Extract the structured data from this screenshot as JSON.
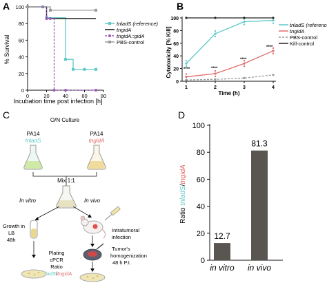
{
  "panels": {
    "A": {
      "letter": "A",
      "ylabel": "% Survival",
      "xlabel": "Incubation time post infection [h]",
      "yticks": [
        "0",
        "20",
        "40",
        "60",
        "80",
        "100"
      ],
      "xticks": [
        "0",
        "20",
        "40",
        "60",
        "80"
      ],
      "legend": [
        "tnladS (reference)",
        "tngidA",
        "tngidA::gidA",
        "PBS-control"
      ]
    },
    "B": {
      "letter": "B",
      "ylabel": "Cytotoxicity [% Kill]",
      "xlabel": "Time (h)",
      "yticks": [
        "0",
        "20",
        "40",
        "60",
        "80",
        "100"
      ],
      "xticks": [
        "1",
        "2",
        "3",
        "4"
      ],
      "legend": [
        "tnladS (reference)",
        "tngidA",
        "PBS-control",
        "Kill-control"
      ],
      "stars": [
        "****",
        "****",
        "****",
        "****"
      ]
    },
    "C": {
      "letter": "C",
      "on_culture": "O/N Culture",
      "pa14_a": "PA14",
      "pa14_b": "PA14",
      "strain_a": "tnladS",
      "strain_b": "tngidA",
      "mix": "Mix 1:1",
      "in_vitro": "In vitro",
      "in_vivo": "In vivo",
      "growth": "Growth in",
      "lb": "LB",
      "h48": "48h",
      "intratumoral": "Intratumoral",
      "infection": "infection",
      "tumor": "Tumor's",
      "homog": "homogenization",
      "hpi": "48 h P.I.",
      "plating": "Plating",
      "cpcr": "cPCR",
      "ratio": "Ratio",
      "ratio_a": "tnladS",
      "slash": "/",
      "ratio_b": "tngidA"
    },
    "D": {
      "letter": "D",
      "ylabel_pre": "Ratio ",
      "ylabel_a": "tnladS",
      "ylabel_slash": "/",
      "ylabel_b": "tngidA",
      "yticks": [
        "0",
        "20",
        "40",
        "60",
        "80",
        "100"
      ]
    }
  },
  "colors": {
    "reference": "#5ec8c8",
    "gidA": "#e06a6a",
    "complement": "#9b59b6",
    "pbs": "#9a9a9a",
    "kill": "#222222",
    "bar": "#595550"
  },
  "chart_data": [
    {
      "type": "line",
      "panel": "A",
      "xlabel": "Incubation time post infection [h]",
      "ylabel": "% Survival",
      "xlim": [
        0,
        80
      ],
      "ylim": [
        0,
        100
      ],
      "series": [
        {
          "name": "tnladS (reference)",
          "x": [
            0,
            16,
            20,
            40,
            48,
            60,
            72
          ],
          "y": [
            100,
            100,
            87,
            37,
            25,
            25,
            25
          ]
        },
        {
          "name": "tngidA",
          "x": [
            0,
            16,
            20,
            24,
            72
          ],
          "y": [
            100,
            100,
            86,
            86,
            86
          ]
        },
        {
          "name": "tngidA::gidA",
          "x": [
            0,
            16,
            20,
            24,
            28,
            40,
            72
          ],
          "y": [
            100,
            100,
            86,
            86,
            0,
            0,
            0
          ]
        },
        {
          "name": "PBS-control",
          "x": [
            0,
            24,
            72
          ],
          "y": [
            100,
            96,
            96
          ]
        }
      ]
    },
    {
      "type": "line",
      "panel": "B",
      "xlabel": "Time (h)",
      "ylabel": "Cytotoxicity [% Kill]",
      "xlim": [
        1,
        4
      ],
      "ylim": [
        0,
        100
      ],
      "series": [
        {
          "name": "tnladS (reference)",
          "x": [
            1,
            2,
            3,
            4
          ],
          "y": [
            28,
            75,
            94,
            96
          ]
        },
        {
          "name": "tngidA",
          "x": [
            1,
            2,
            3,
            4
          ],
          "y": [
            7,
            12,
            28,
            48
          ]
        },
        {
          "name": "PBS-control",
          "x": [
            1,
            2,
            3,
            4
          ],
          "y": [
            2,
            3,
            5,
            10
          ]
        },
        {
          "name": "Kill-control",
          "x": [
            1,
            2,
            3,
            4
          ],
          "y": [
            100,
            100,
            100,
            100
          ]
        }
      ]
    },
    {
      "type": "bar",
      "panel": "D",
      "categories": [
        "in vitro",
        "in vivo"
      ],
      "values": [
        12.7,
        81.3
      ],
      "value_labels": [
        "12.7",
        "81.3"
      ],
      "ylim": [
        0,
        100
      ],
      "ylabel": "Ratio tnladS/tngidA"
    }
  ]
}
